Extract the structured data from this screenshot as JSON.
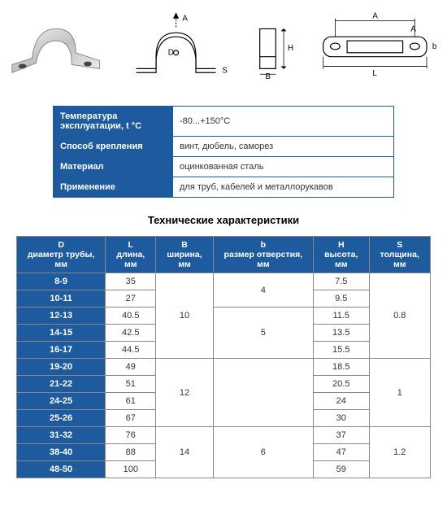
{
  "diagrams": {
    "labels": {
      "A": "A",
      "B": "B",
      "L": "L",
      "H": "H",
      "S": "S",
      "D": "D",
      "b": "b"
    }
  },
  "info": {
    "rows": [
      {
        "label": "Температура эксплуатации, t °C",
        "value": "-80...+150°C"
      },
      {
        "label": "Способ крепления",
        "value": "винт, дюбель, саморез"
      },
      {
        "label": "Материал",
        "value": "оцинкованная сталь"
      },
      {
        "label": "Применение",
        "value": "для труб, кабелей и металлорукавов"
      }
    ]
  },
  "spec": {
    "title": "Технические характеристики",
    "headers": {
      "D": {
        "line1": "D",
        "line2": "диаметр трубы, мм"
      },
      "L": {
        "line1": "L",
        "line2": "длина, мм"
      },
      "B": {
        "line1": "B",
        "line2": "ширина, мм"
      },
      "b": {
        "line1": "b",
        "line2": "размер отверстия, мм"
      },
      "H": {
        "line1": "H",
        "line2": "высота, мм"
      },
      "S": {
        "line1": "S",
        "line2": "толщина, мм"
      }
    },
    "rows": [
      {
        "D": "8-9",
        "L": "35",
        "H": "7.5"
      },
      {
        "D": "10-11",
        "L": "27",
        "H": "9.5"
      },
      {
        "D": "12-13",
        "L": "40.5",
        "H": "11.5"
      },
      {
        "D": "14-15",
        "L": "42.5",
        "H": "13.5"
      },
      {
        "D": "16-17",
        "L": "44.5",
        "H": "15.5"
      },
      {
        "D": "19-20",
        "L": "49",
        "H": "18.5"
      },
      {
        "D": "21-22",
        "L": "51",
        "H": "20.5"
      },
      {
        "D": "24-25",
        "L": "61",
        "H": "24"
      },
      {
        "D": "25-26",
        "L": "67",
        "H": "30"
      },
      {
        "D": "31-32",
        "L": "76",
        "H": "37"
      },
      {
        "D": "38-40",
        "L": "88",
        "H": "47"
      },
      {
        "D": "48-50",
        "L": "100",
        "H": "59"
      }
    ],
    "B_groups": [
      {
        "value": "10",
        "rowspan": 5
      },
      {
        "value": "12",
        "rowspan": 4
      },
      {
        "value": "14",
        "rowspan": 3
      }
    ],
    "b_groups": [
      {
        "value": "4",
        "rowspan": 2
      },
      {
        "value": "5",
        "rowspan": 3
      },
      {
        "value": "",
        "rowspan": 4
      },
      {
        "value": "6",
        "rowspan": 3
      }
    ],
    "S_groups": [
      {
        "value": "0.8",
        "rowspan": 5
      },
      {
        "value": "1",
        "rowspan": 4
      },
      {
        "value": "1.2",
        "rowspan": 3
      }
    ]
  },
  "colors": {
    "header_bg": "#1e5a9e",
    "header_fg": "#ffffff",
    "border": "#888888",
    "text": "#333333"
  }
}
